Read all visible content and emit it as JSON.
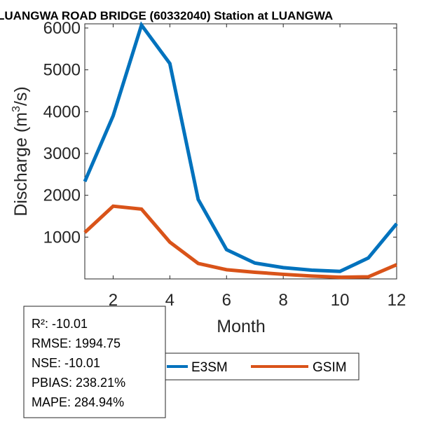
{
  "chart_data": {
    "type": "line",
    "title": "LUANGWA ROAD BRIDGE (60332040)  Station at  LUANGWA",
    "xlabel": "Month",
    "ylabel_main": "Discharge (m",
    "ylabel_sup": "3",
    "ylabel_tail": "/s)",
    "xlim": [
      1,
      12
    ],
    "ylim": [
      0,
      6100
    ],
    "xticks": [
      2,
      4,
      6,
      8,
      10,
      12
    ],
    "yticks": [
      1000,
      2000,
      3000,
      4000,
      5000,
      6000
    ],
    "x": [
      1,
      2,
      3,
      4,
      5,
      6,
      7,
      8,
      9,
      10,
      11,
      12
    ],
    "series": [
      {
        "name": "E3SM",
        "color": "#0072BD",
        "values": [
          2330,
          3900,
          6070,
          5150,
          1900,
          700,
          380,
          270,
          210,
          180,
          500,
          1320
        ]
      },
      {
        "name": "GSIM",
        "color": "#D95319",
        "values": [
          1110,
          1740,
          1670,
          880,
          370,
          220,
          160,
          110,
          70,
          40,
          50,
          340
        ]
      }
    ],
    "stats": [
      "R²: -10.01",
      "RMSE: 1994.75",
      "NSE: -10.01",
      "PBIAS: 238.21%",
      "MAPE: 284.94%"
    ]
  }
}
